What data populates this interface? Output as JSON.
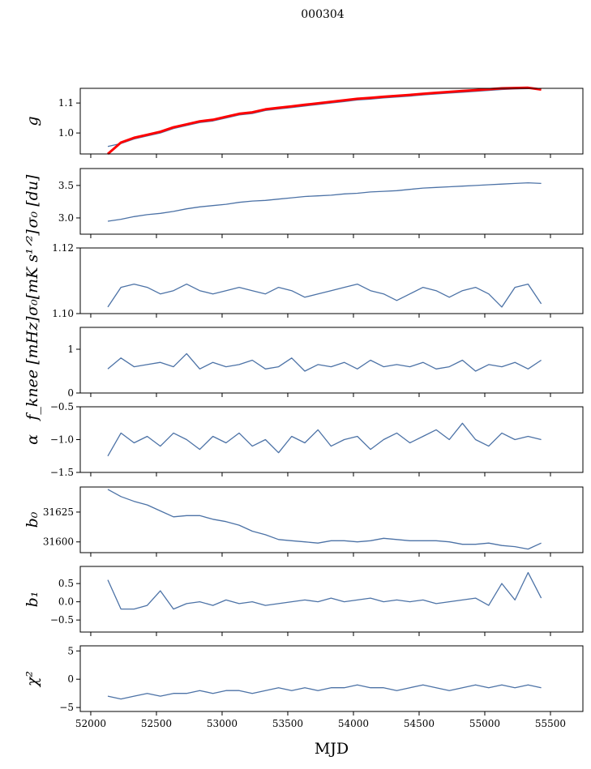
{
  "title": "000304",
  "chart_data": [
    {
      "type": "line",
      "ylabel": "g",
      "ylim": [
        0.93,
        1.149
      ],
      "yticks": [
        1.0,
        1.1
      ],
      "ytick_labels": [
        "1.0",
        "1.1"
      ],
      "series": [
        {
          "name": "g",
          "color": "#4c72a6",
          "values": [
            0.955,
            0.965,
            0.98,
            0.99,
            1.0,
            1.015,
            1.025,
            1.035,
            1.04,
            1.05,
            1.06,
            1.065,
            1.075,
            1.08,
            1.085,
            1.09,
            1.095,
            1.1,
            1.105,
            1.11,
            1.113,
            1.117,
            1.12,
            1.123,
            1.127,
            1.13,
            1.133,
            1.136,
            1.139,
            1.142,
            1.145,
            1.147,
            1.148,
            1.148
          ]
        },
        {
          "name": "g-reference",
          "color": "#ff0000",
          "values": [
            0.93,
            0.968,
            0.984,
            0.994,
            1.004,
            1.019,
            1.029,
            1.039,
            1.044,
            1.054,
            1.064,
            1.069,
            1.079,
            1.084,
            1.089,
            1.094,
            1.099,
            1.104,
            1.109,
            1.114,
            1.117,
            1.121,
            1.124,
            1.127,
            1.131,
            1.134,
            1.137,
            1.14,
            1.143,
            1.146,
            1.149,
            1.15,
            1.151,
            1.145
          ]
        }
      ]
    },
    {
      "type": "line",
      "ylabel": "σ₀ [du]",
      "ylim": [
        2.75,
        3.76
      ],
      "yticks": [
        3.0,
        3.5
      ],
      "ytick_labels": [
        "3.0",
        "3.5"
      ],
      "series": [
        {
          "name": "sigma0_du",
          "color": "#4c72a6",
          "values": [
            2.95,
            2.98,
            3.02,
            3.05,
            3.07,
            3.1,
            3.14,
            3.17,
            3.19,
            3.21,
            3.24,
            3.26,
            3.27,
            3.29,
            3.31,
            3.33,
            3.34,
            3.35,
            3.37,
            3.38,
            3.4,
            3.41,
            3.42,
            3.44,
            3.46,
            3.47,
            3.48,
            3.49,
            3.5,
            3.51,
            3.52,
            3.53,
            3.54,
            3.53
          ]
        }
      ]
    },
    {
      "type": "line",
      "ylabel": "σ₀[mK s¹ᐟ²]",
      "ylim": [
        1.1,
        1.12
      ],
      "yticks": [
        1.1,
        1.12
      ],
      "ytick_labels": [
        "1.10",
        "1.12"
      ],
      "series": [
        {
          "name": "sigma0_mK",
          "color": "#4c72a6",
          "values": [
            1.102,
            1.108,
            1.109,
            1.108,
            1.106,
            1.107,
            1.109,
            1.107,
            1.106,
            1.107,
            1.108,
            1.107,
            1.106,
            1.108,
            1.107,
            1.105,
            1.106,
            1.107,
            1.108,
            1.109,
            1.107,
            1.106,
            1.104,
            1.106,
            1.108,
            1.107,
            1.105,
            1.107,
            1.108,
            1.106,
            1.102,
            1.108,
            1.109,
            1.103
          ]
        }
      ]
    },
    {
      "type": "line",
      "ylabel": "f_knee [mHz]",
      "ylim": [
        0,
        1.5
      ],
      "yticks": [
        0,
        1
      ],
      "ytick_labels": [
        "0",
        "1"
      ],
      "series": [
        {
          "name": "fknee",
          "color": "#4c72a6",
          "values": [
            0.55,
            0.8,
            0.6,
            0.65,
            0.7,
            0.6,
            0.9,
            0.55,
            0.7,
            0.6,
            0.65,
            0.75,
            0.55,
            0.6,
            0.8,
            0.5,
            0.65,
            0.6,
            0.7,
            0.55,
            0.75,
            0.6,
            0.65,
            0.6,
            0.7,
            0.55,
            0.6,
            0.75,
            0.5,
            0.65,
            0.6,
            0.7,
            0.55,
            0.75
          ]
        }
      ]
    },
    {
      "type": "line",
      "ylabel": "α",
      "ylim": [
        -1.5,
        -0.5
      ],
      "yticks": [
        -1.5,
        -1.0,
        -0.5
      ],
      "ytick_labels": [
        "−1.5",
        "−1.0",
        "−0.5"
      ],
      "series": [
        {
          "name": "alpha",
          "color": "#4c72a6",
          "values": [
            -1.25,
            -0.9,
            -1.05,
            -0.95,
            -1.1,
            -0.9,
            -1.0,
            -1.15,
            -0.95,
            -1.05,
            -0.9,
            -1.1,
            -1.0,
            -1.2,
            -0.95,
            -1.05,
            -0.85,
            -1.1,
            -1.0,
            -0.95,
            -1.15,
            -1.0,
            -0.9,
            -1.05,
            -0.95,
            -0.85,
            -1.0,
            -0.75,
            -1.0,
            -1.1,
            -0.9,
            -1.0,
            -0.95,
            -1.0
          ]
        }
      ]
    },
    {
      "type": "line",
      "ylabel": "b₀",
      "ylim": [
        31591,
        31646
      ],
      "yticks": [
        31600,
        31625
      ],
      "ytick_labels": [
        "31600",
        "31625"
      ],
      "series": [
        {
          "name": "b0",
          "color": "#4c72a6",
          "values": [
            31644,
            31638,
            31634,
            31631,
            31626,
            31621,
            31622,
            31622,
            31619,
            31617,
            31614,
            31609,
            31606,
            31602,
            31601,
            31600,
            31599,
            31601,
            31601,
            31600,
            31601,
            31603,
            31602,
            31601,
            31601,
            31601,
            31600,
            31598,
            31598,
            31599,
            31597,
            31596,
            31594,
            31599
          ]
        }
      ]
    },
    {
      "type": "line",
      "ylabel": "b₁",
      "ylim": [
        -0.83,
        0.97
      ],
      "yticks": [
        -0.5,
        0.0,
        0.5
      ],
      "ytick_labels": [
        "−0.5",
        "0.0",
        "0.5"
      ],
      "series": [
        {
          "name": "b1",
          "color": "#4c72a6",
          "values": [
            0.6,
            -0.2,
            -0.2,
            -0.1,
            0.3,
            -0.2,
            -0.05,
            0.0,
            -0.1,
            0.05,
            -0.05,
            0.0,
            -0.1,
            -0.05,
            0.0,
            0.05,
            0.0,
            0.1,
            0.0,
            0.05,
            0.1,
            0.0,
            0.05,
            0.0,
            0.05,
            -0.05,
            0.0,
            0.05,
            0.1,
            -0.1,
            0.5,
            0.05,
            0.8,
            0.1
          ]
        }
      ]
    },
    {
      "type": "line",
      "ylabel": "χ²",
      "ylim": [
        -5.7,
        5.9
      ],
      "yticks": [
        -5,
        0,
        5
      ],
      "ytick_labels": [
        "−5",
        "0",
        "5"
      ],
      "series": [
        {
          "name": "chi2",
          "color": "#4c72a6",
          "values": [
            -3,
            -3.5,
            -3,
            -2.5,
            -3,
            -2.5,
            -2.5,
            -2,
            -2.5,
            -2,
            -2,
            -2.5,
            -2,
            -1.5,
            -2,
            -1.5,
            -2,
            -1.5,
            -1.5,
            -1,
            -1.5,
            -1.5,
            -2,
            -1.5,
            -1,
            -1.5,
            -2,
            -1.5,
            -1,
            -1.5,
            -1,
            -1.5,
            -1,
            -1.5
          ]
        }
      ]
    }
  ],
  "x": {
    "label": "MJD",
    "xlim": [
      51920,
      55747
    ],
    "ticks": [
      52000,
      52500,
      53000,
      53500,
      54000,
      54500,
      55000,
      55500
    ],
    "tick_labels": [
      "52000",
      "52500",
      "53000",
      "53500",
      "54000",
      "54500",
      "55000",
      "55500"
    ],
    "values": [
      52130,
      52230,
      52330,
      52430,
      52530,
      52630,
      52730,
      52830,
      52930,
      53030,
      53130,
      53230,
      53330,
      53430,
      53530,
      53630,
      53730,
      53830,
      53930,
      54030,
      54130,
      54230,
      54330,
      54430,
      54530,
      54630,
      54730,
      54830,
      54930,
      55030,
      55130,
      55230,
      55330,
      55430
    ]
  }
}
